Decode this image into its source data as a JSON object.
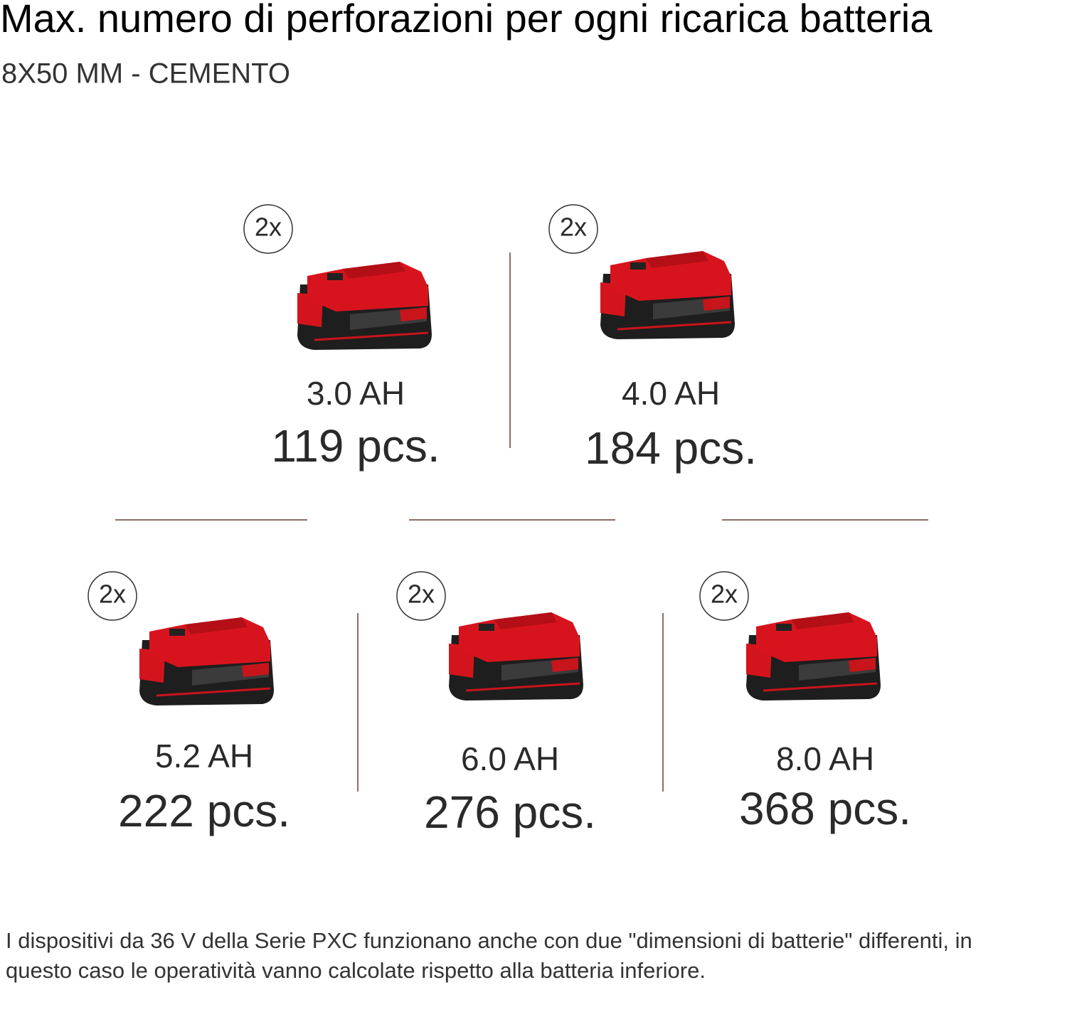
{
  "header": {
    "title": "Max. numero di perforazioni per ogni ricarica batteria",
    "subtitle": "8X50 MM - CEMENTO"
  },
  "batteries": [
    {
      "badge": "2x",
      "capacity": "3.0 AH",
      "count": "119 pcs."
    },
    {
      "badge": "2x",
      "capacity": "4.0 AH",
      "count": "184 pcs."
    },
    {
      "badge": "2x",
      "capacity": "5.2 AH",
      "count": "222 pcs."
    },
    {
      "badge": "2x",
      "capacity": "6.0 AH",
      "count": "276 pcs."
    },
    {
      "badge": "2x",
      "capacity": "8.0 AH",
      "count": "368 pcs."
    }
  ],
  "footer": {
    "note": "I dispositivi da 36 V della Serie PXC funzionano anche con due \"dimensioni di batterie\" differenti, in questo caso le operatività vanno calcolate rispetto alla batteria inferiore."
  }
}
